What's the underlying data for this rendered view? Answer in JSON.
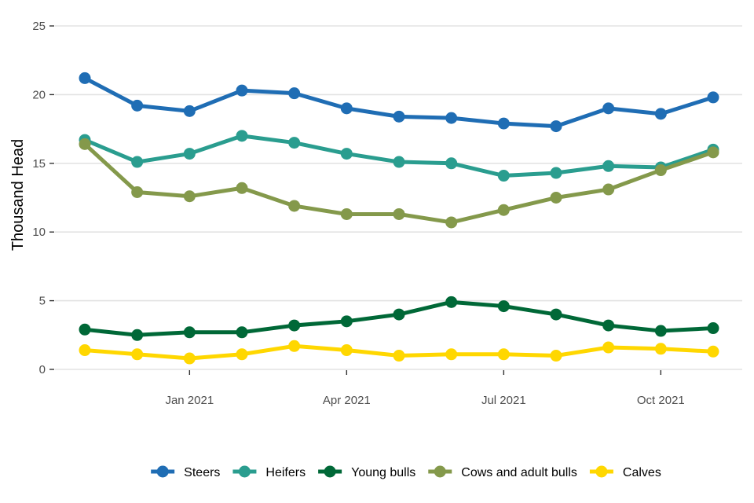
{
  "chart_data": {
    "type": "line",
    "title": "",
    "xlabel": "",
    "ylabel": "Thousand Head",
    "ylim": [
      0,
      25
    ],
    "y_ticks": [
      0,
      5,
      10,
      15,
      20,
      25
    ],
    "y_tick_labels": [
      "0",
      "5",
      "10",
      "15",
      "20",
      "25"
    ],
    "x_range": [
      "2020-11",
      "2021-11"
    ],
    "x_ticks": [
      "2021-01",
      "2021-04",
      "2021-07",
      "2021-10"
    ],
    "x_tick_labels": [
      "Jan 2021",
      "Apr 2021",
      "Jul 2021",
      "Oct 2021"
    ],
    "x": [
      "2020-11",
      "2020-12",
      "2021-01",
      "2021-02",
      "2021-03",
      "2021-04",
      "2021-05",
      "2021-06",
      "2021-07",
      "2021-08",
      "2021-09",
      "2021-10",
      "2021-11"
    ],
    "grid": true,
    "legend_position": "bottom",
    "series": [
      {
        "name": "Steers",
        "color": "#1f6db4",
        "values": [
          21.2,
          19.2,
          18.8,
          20.3,
          20.1,
          19.0,
          18.4,
          18.3,
          17.9,
          17.7,
          19.0,
          18.6,
          19.8
        ]
      },
      {
        "name": "Heifers",
        "color": "#2a9d8f",
        "values": [
          16.7,
          15.1,
          15.7,
          17.0,
          16.5,
          15.7,
          15.1,
          15.0,
          14.1,
          14.3,
          14.8,
          14.7,
          16.0
        ]
      },
      {
        "name": "Young bulls",
        "color": "#006837",
        "values": [
          2.9,
          2.5,
          2.7,
          2.7,
          3.2,
          3.5,
          4.0,
          4.9,
          4.6,
          4.0,
          3.2,
          2.8,
          3.0
        ]
      },
      {
        "name": "Cows and adult bulls",
        "color": "#84994b",
        "values": [
          16.4,
          12.9,
          12.6,
          13.2,
          11.9,
          11.3,
          11.3,
          10.7,
          11.6,
          12.5,
          13.1,
          14.5,
          15.8
        ]
      },
      {
        "name": "Calves",
        "color": "#ffd700",
        "values": [
          1.4,
          1.1,
          0.8,
          1.1,
          1.7,
          1.4,
          1.0,
          1.1,
          1.1,
          1.0,
          1.6,
          1.5,
          1.3
        ]
      }
    ]
  }
}
